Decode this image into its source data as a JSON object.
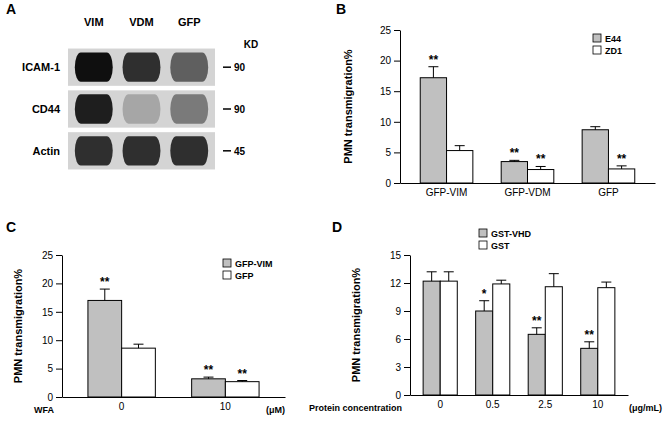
{
  "chart_data": [
    {
      "type": "blot",
      "panel": "A",
      "lanes": [
        "VIM",
        "VDM",
        "GFP"
      ],
      "rows": [
        "ICAM-1",
        "CD44",
        "Actin"
      ],
      "intensities": [
        [
          0.95,
          0.85,
          0.7
        ],
        [
          0.9,
          0.45,
          0.6
        ],
        [
          0.85,
          0.85,
          0.85
        ]
      ],
      "size_unit": "KD",
      "sizes": [
        90,
        90,
        45
      ]
    },
    {
      "type": "bar",
      "panel": "B",
      "y_label": "PMN transmigration%",
      "categories": [
        "GFP-VIM",
        "GFP-VDM",
        "GFP"
      ],
      "series": [
        {
          "name": "E44",
          "color": "#c0c0c0",
          "values": [
            17.2,
            3.5,
            8.7
          ],
          "errors": [
            1.8,
            0.2,
            0.5
          ],
          "annotations": [
            "**",
            "**",
            null
          ]
        },
        {
          "name": "ZD1",
          "color": "#ffffff",
          "values": [
            5.3,
            2.2,
            2.3
          ],
          "errors": [
            0.8,
            0.5,
            0.5
          ],
          "annotations": [
            null,
            "**",
            "**"
          ]
        }
      ],
      "ylim": [
        0,
        25
      ],
      "yticks": [
        0,
        5,
        10,
        15,
        20,
        25
      ],
      "legend": "top-right"
    },
    {
      "type": "bar",
      "panel": "C",
      "y_label": "PMN transmigration%",
      "x_label": "WFA",
      "x_unit": "(μM)",
      "categories": [
        "0",
        "10"
      ],
      "series": [
        {
          "name": "GFP-VIM",
          "color": "#c0c0c0",
          "values": [
            17.0,
            3.2
          ],
          "errors": [
            2.0,
            0.3
          ],
          "annotations": [
            "**",
            "**"
          ]
        },
        {
          "name": "GFP",
          "color": "#ffffff",
          "values": [
            8.6,
            2.7
          ],
          "errors": [
            0.7,
            0.2
          ],
          "annotations": [
            null,
            "**"
          ]
        }
      ],
      "ylim": [
        0,
        25
      ],
      "yticks": [
        0,
        5,
        10,
        15,
        20,
        25
      ],
      "legend": "top-right"
    },
    {
      "type": "bar",
      "panel": "D",
      "y_label": "PMN transmigration%",
      "x_label": "Protein concentration",
      "x_unit": "(μg/mL)",
      "categories": [
        "0",
        "0.5",
        "2.5",
        "10"
      ],
      "series": [
        {
          "name": "GST-VHD",
          "color": "#c0c0c0",
          "values": [
            12.2,
            9.0,
            6.5,
            5.0
          ],
          "errors": [
            1.0,
            1.1,
            0.7,
            0.7
          ],
          "annotations": [
            null,
            "*",
            "**",
            "**"
          ]
        },
        {
          "name": "GST",
          "color": "#ffffff",
          "values": [
            12.2,
            11.9,
            11.6,
            11.5
          ],
          "errors": [
            1.0,
            0.4,
            1.4,
            0.6
          ],
          "annotations": [
            null,
            null,
            null,
            null
          ]
        }
      ],
      "ylim": [
        0,
        15
      ],
      "yticks": [
        0,
        3,
        6,
        9,
        12,
        15
      ],
      "legend": "top-center"
    }
  ]
}
